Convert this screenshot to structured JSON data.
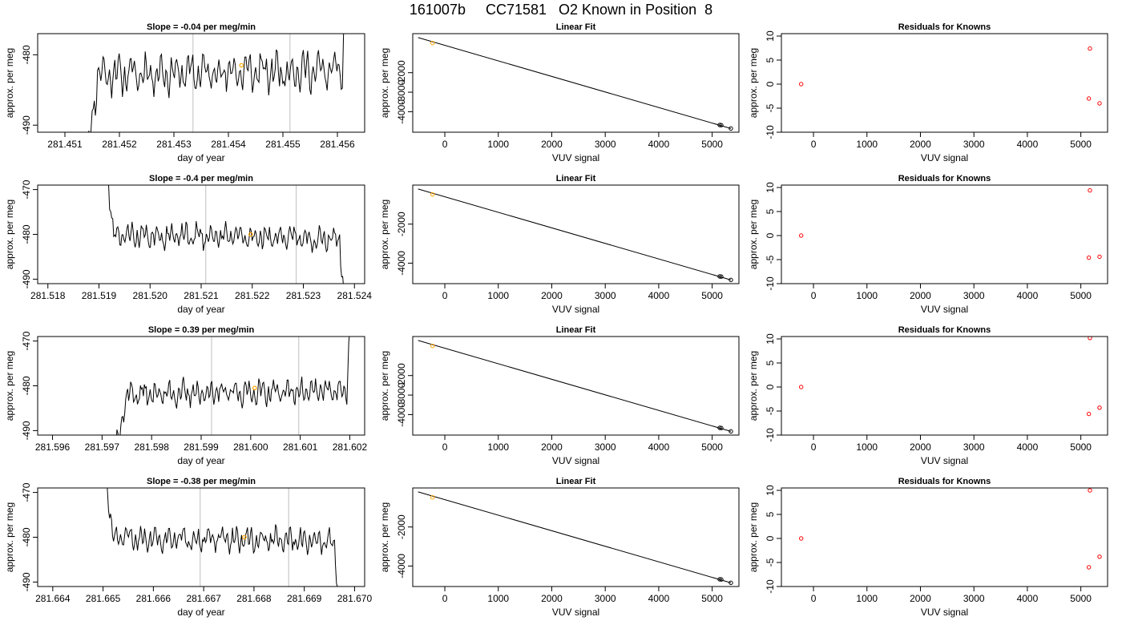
{
  "figure": {
    "title": "161007b     CC71581   O2 Known in Position  8"
  },
  "colors": {
    "trace": "#000000",
    "gridline": "#bebebe",
    "known_point": "#ffa500",
    "fit_line": "#000000",
    "residual_point": "#ff0000",
    "frame": "#000000"
  },
  "chart_data": [
    {
      "type": "line",
      "panel": "time-series",
      "row": 1,
      "title": "Slope =  -0.04  per meg/min",
      "xlabel": "day of year",
      "ylabel": "approx. per meg",
      "xlim": [
        281.4505,
        281.4565
      ],
      "ylim": [
        -491,
        -477
      ],
      "xticks": [
        "281.451",
        "281.452",
        "281.453",
        "281.454",
        "281.455",
        "281.456"
      ],
      "yticks": [
        "-480",
        "-490"
      ],
      "vlines": [
        281.45335,
        281.45513
      ],
      "trace": {
        "start": 281.4514,
        "end": 281.45617,
        "base": -482.5,
        "drift": 0.3,
        "seed": 11,
        "rise_end": 281.4516
      },
      "marker": {
        "x": 281.45424,
        "y": -481.5
      }
    },
    {
      "type": "scatter",
      "panel": "linear-fit",
      "row": 1,
      "title": "Linear Fit",
      "xlabel": "VUV signal",
      "ylabel": "approx. per meg",
      "xlim": [
        -600,
        5500
      ],
      "ylim": [
        -5050,
        0
      ],
      "xticks": [
        "0",
        "1000",
        "2000",
        "3000",
        "4000",
        "5000"
      ],
      "yticks": [
        "-2000",
        "-3000",
        "-4000"
      ],
      "fit": {
        "x": [
          -500,
          5350
        ],
        "y": [
          -200,
          -4860
        ]
      },
      "points": {
        "x": [
          -230,
          5140,
          5170,
          5350
        ],
        "y": [
          -480,
          -4680,
          -4690,
          -4860
        ]
      },
      "known_index": 0
    },
    {
      "type": "scatter",
      "panel": "residuals",
      "row": 1,
      "title": "Residuals for Knowns",
      "xlabel": "VUV signal",
      "ylabel": "approx. per meg",
      "xlim": [
        -600,
        5500
      ],
      "ylim": [
        -10,
        10.5
      ],
      "xticks": [
        "0",
        "1000",
        "2000",
        "3000",
        "4000",
        "5000"
      ],
      "yticks": [
        "-10",
        "-5",
        "0",
        "5",
        "10"
      ],
      "points": {
        "x": [
          -230,
          5150,
          5170,
          5350
        ],
        "y": [
          0,
          -3,
          7.4,
          -4
        ]
      }
    },
    {
      "type": "line",
      "panel": "time-series",
      "row": 2,
      "title": "Slope =  -0.4  per meg/min",
      "xlabel": "day of year",
      "ylabel": "approx. per meg",
      "xlim": [
        281.5178,
        281.5242
      ],
      "ylim": [
        -491,
        -469
      ],
      "xticks": [
        "281.518",
        "281.519",
        "281.520",
        "281.521",
        "281.522",
        "281.523",
        "281.524"
      ],
      "yticks": [
        "-470",
        "-480",
        "-490"
      ],
      "vlines": [
        281.52109,
        281.52286
      ],
      "trace": {
        "start": 281.51905,
        "end": 281.52383,
        "base": -480.5,
        "drift": -0.4,
        "seed": 23,
        "fall_start": 281.51913
      },
      "marker": {
        "x": 281.52197,
        "y": -480
      }
    },
    {
      "type": "scatter",
      "panel": "linear-fit",
      "row": 2,
      "title": "Linear Fit",
      "xlabel": "VUV signal",
      "ylabel": "approx. per meg",
      "xlim": [
        -600,
        5500
      ],
      "ylim": [
        -5050,
        0
      ],
      "xticks": [
        "0",
        "1000",
        "2000",
        "3000",
        "4000",
        "5000"
      ],
      "yticks": [
        "-2000",
        "-4000"
      ],
      "fit": {
        "x": [
          -500,
          5350
        ],
        "y": [
          -200,
          -4860
        ]
      },
      "points": {
        "x": [
          -230,
          5140,
          5170,
          5350
        ],
        "y": [
          -480,
          -4680,
          -4690,
          -4860
        ]
      },
      "known_index": 0
    },
    {
      "type": "scatter",
      "panel": "residuals",
      "row": 2,
      "title": "Residuals for Knowns",
      "xlabel": "VUV signal",
      "ylabel": "approx. per meg",
      "xlim": [
        -600,
        5500
      ],
      "ylim": [
        -10,
        10.5
      ],
      "xticks": [
        "0",
        "1000",
        "2000",
        "3000",
        "4000",
        "5000"
      ],
      "yticks": [
        "-10",
        "-5",
        "0",
        "5",
        "10"
      ],
      "points": {
        "x": [
          -230,
          5150,
          5170,
          5350
        ],
        "y": [
          0,
          -4.6,
          9.4,
          -4.4
        ]
      }
    },
    {
      "type": "line",
      "panel": "time-series",
      "row": 3,
      "title": "Slope =  0.39  per meg/min",
      "xlabel": "day of year",
      "ylabel": "approx. per meg",
      "xlim": [
        281.5957,
        281.6023
      ],
      "ylim": [
        -491,
        -469
      ],
      "xticks": [
        "281.596",
        "281.597",
        "281.598",
        "281.599",
        "281.600",
        "281.601",
        "281.602"
      ],
      "yticks": [
        "-470",
        "-480",
        "-490"
      ],
      "vlines": [
        281.59921,
        281.60097
      ],
      "trace": {
        "start": 281.59728,
        "end": 281.60202,
        "base": -481.5,
        "drift": 0.4,
        "seed": 37,
        "rise_end": 281.5975
      },
      "marker": {
        "x": 281.60008,
        "y": -480.5
      }
    },
    {
      "type": "scatter",
      "panel": "linear-fit",
      "row": 3,
      "title": "Linear Fit",
      "xlabel": "VUV signal",
      "ylabel": "approx. per meg",
      "xlim": [
        -600,
        5500
      ],
      "ylim": [
        -5050,
        0
      ],
      "xticks": [
        "0",
        "1000",
        "2000",
        "3000",
        "4000",
        "5000"
      ],
      "yticks": [
        "-2000",
        "-3000",
        "-4000"
      ],
      "fit": {
        "x": [
          -500,
          5350
        ],
        "y": [
          -200,
          -4860
        ]
      },
      "points": {
        "x": [
          -230,
          5140,
          5170,
          5350
        ],
        "y": [
          -480,
          -4680,
          -4690,
          -4860
        ]
      },
      "known_index": 0
    },
    {
      "type": "scatter",
      "panel": "residuals",
      "row": 3,
      "title": "Residuals for Knowns",
      "xlabel": "VUV signal",
      "ylabel": "approx. per meg",
      "xlim": [
        -600,
        5500
      ],
      "ylim": [
        -10,
        10.5
      ],
      "xticks": [
        "0",
        "1000",
        "2000",
        "3000",
        "4000",
        "5000"
      ],
      "yticks": [
        "-10",
        "-5",
        "0",
        "5",
        "10"
      ],
      "points": {
        "x": [
          -230,
          5150,
          5170,
          5350
        ],
        "y": [
          0,
          -5.6,
          10.2,
          -4.3
        ]
      }
    },
    {
      "type": "line",
      "panel": "time-series",
      "row": 4,
      "title": "Slope =  -0.38  per meg/min",
      "xlabel": "day of year",
      "ylabel": "approx. per meg",
      "xlim": [
        281.6637,
        281.6702
      ],
      "ylim": [
        -491,
        -469
      ],
      "xticks": [
        "281.664",
        "281.665",
        "281.666",
        "281.667",
        "281.668",
        "281.669",
        "281.670"
      ],
      "yticks": [
        "-470",
        "-480",
        "-490"
      ],
      "vlines": [
        281.66693,
        281.66869
      ],
      "trace": {
        "start": 281.66495,
        "end": 281.66972,
        "base": -480.5,
        "drift": -0.4,
        "seed": 51,
        "fall_start": 281.66503
      },
      "marker": {
        "x": 281.66781,
        "y": -480
      }
    },
    {
      "type": "scatter",
      "panel": "linear-fit",
      "row": 4,
      "title": "Linear Fit",
      "xlabel": "VUV signal",
      "ylabel": "approx. per meg",
      "xlim": [
        -600,
        5500
      ],
      "ylim": [
        -5050,
        0
      ],
      "xticks": [
        "0",
        "1000",
        "2000",
        "3000",
        "4000",
        "5000"
      ],
      "yticks": [
        "-2000",
        "-4000"
      ],
      "fit": {
        "x": [
          -500,
          5350
        ],
        "y": [
          -200,
          -4860
        ]
      },
      "points": {
        "x": [
          -230,
          5140,
          5170,
          5350
        ],
        "y": [
          -480,
          -4680,
          -4690,
          -4860
        ]
      },
      "known_index": 0
    },
    {
      "type": "scatter",
      "panel": "residuals",
      "row": 4,
      "title": "Residuals for Knowns",
      "xlabel": "VUV signal",
      "ylabel": "approx. per meg",
      "xlim": [
        -600,
        5500
      ],
      "ylim": [
        -10,
        10.5
      ],
      "xticks": [
        "0",
        "1000",
        "2000",
        "3000",
        "4000",
        "5000"
      ],
      "yticks": [
        "-10",
        "-5",
        "0",
        "5",
        "10"
      ],
      "points": {
        "x": [
          -230,
          5150,
          5170,
          5350
        ],
        "y": [
          0,
          -6,
          10,
          -3.8
        ]
      }
    }
  ]
}
